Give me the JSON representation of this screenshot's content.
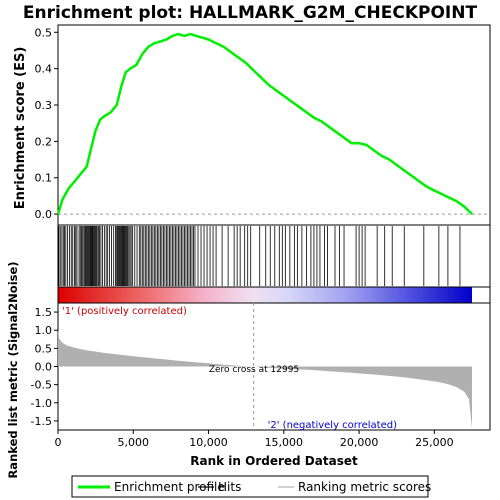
{
  "chart_data": {
    "type": "line",
    "title": "Enrichment plot: HALLMARK_G2M_CHECKPOINT",
    "es_panel": {
      "ylabel": "Enrichment score (ES)",
      "ylim": [
        -0.03,
        0.52
      ],
      "yticks": [
        "0.0",
        "0.1",
        "0.2",
        "0.3",
        "0.4",
        "0.5"
      ],
      "ytick_values": [
        0.0,
        0.1,
        0.2,
        0.3,
        0.4,
        0.5
      ],
      "series_color": "#00ee00",
      "x": [
        0,
        300,
        700,
        1100,
        1500,
        1900,
        2200,
        2500,
        2800,
        3100,
        3500,
        3900,
        4200,
        4500,
        4800,
        5200,
        5600,
        6000,
        6400,
        6800,
        7200,
        7600,
        8000,
        8400,
        8800,
        9200,
        9600,
        10000,
        10500,
        11000,
        11500,
        12000,
        12500,
        13000,
        13500,
        14000,
        14500,
        15000,
        15500,
        16000,
        16500,
        17000,
        17500,
        18000,
        18500,
        19000,
        19500,
        20000,
        20500,
        21000,
        21500,
        22000,
        22500,
        23000,
        23500,
        24000,
        24500,
        25000,
        25500,
        26000,
        26500,
        27000,
        27500
      ],
      "y": [
        0.0,
        0.04,
        0.07,
        0.09,
        0.11,
        0.13,
        0.18,
        0.23,
        0.26,
        0.27,
        0.28,
        0.3,
        0.35,
        0.39,
        0.4,
        0.41,
        0.44,
        0.46,
        0.47,
        0.475,
        0.48,
        0.49,
        0.495,
        0.49,
        0.495,
        0.49,
        0.485,
        0.48,
        0.47,
        0.46,
        0.445,
        0.43,
        0.415,
        0.395,
        0.375,
        0.355,
        0.34,
        0.325,
        0.31,
        0.295,
        0.28,
        0.265,
        0.255,
        0.24,
        0.225,
        0.21,
        0.195,
        0.195,
        0.19,
        0.175,
        0.16,
        0.15,
        0.135,
        0.12,
        0.105,
        0.09,
        0.075,
        0.065,
        0.055,
        0.045,
        0.035,
        0.02,
        0.0
      ]
    },
    "hits": [
      60,
      150,
      260,
      350,
      430,
      520,
      640,
      760,
      880,
      980,
      1100,
      1180,
      1260,
      1400,
      1480,
      1560,
      1640,
      1720,
      1790,
      1850,
      1910,
      1970,
      2030,
      2090,
      2150,
      2200,
      2260,
      2310,
      2370,
      2420,
      2480,
      2540,
      2600,
      2680,
      2760,
      2850,
      2950,
      3080,
      3200,
      3300,
      3420,
      3560,
      3700,
      3820,
      3900,
      3960,
      4020,
      4080,
      4140,
      4200,
      4260,
      4320,
      4380,
      4440,
      4500,
      4560,
      4620,
      4700,
      4780,
      4860,
      4960,
      5100,
      5250,
      5400,
      5500,
      5600,
      5700,
      5800,
      5900,
      6000,
      6100,
      6200,
      6300,
      6400,
      6500,
      6600,
      6700,
      6800,
      6900,
      7000,
      7100,
      7200,
      7300,
      7400,
      7500,
      7600,
      7700,
      7800,
      7900,
      8000,
      8100,
      8200,
      8300,
      8400,
      8500,
      8600,
      8700,
      8800,
      8900,
      9000,
      9100,
      9300,
      9500,
      9700,
      9900,
      10100,
      10300,
      10500,
      10900,
      11300,
      11700,
      11900,
      12100,
      12400,
      12600,
      12800,
      13400,
      13800,
      14100,
      14400,
      14700,
      14900,
      15100,
      15400,
      15700,
      15900,
      16200,
      16500,
      16800,
      17000,
      17200,
      17400,
      17700,
      17900,
      18400,
      18700,
      19000,
      19800,
      20000,
      20200,
      20400,
      21200,
      21700,
      22200,
      23000,
      24300,
      25300,
      25900,
      26700
    ],
    "color_bar": {
      "n_ranks": 27500,
      "zero_cross": 12995
    },
    "ranked_panel": {
      "ylabel": "Ranked list metric (Signal2Noise)",
      "ylim": [
        -1.75,
        1.75
      ],
      "yticks": [
        "-1.5",
        "-1.0",
        "-0.5",
        "0.0",
        "0.5",
        "1.0",
        "1.5"
      ],
      "ytick_values": [
        -1.5,
        -1.0,
        -0.5,
        0.0,
        0.5,
        1.0,
        1.5
      ],
      "x": [
        0,
        100,
        300,
        600,
        1000,
        1500,
        2000,
        3000,
        4000,
        5000,
        6000,
        7000,
        8000,
        9000,
        10000,
        11000,
        12000,
        12995,
        14000,
        15000,
        16000,
        17000,
        18000,
        19000,
        20000,
        21000,
        22000,
        23000,
        24000,
        25000,
        25500,
        26000,
        26500,
        27000,
        27300,
        27500
      ],
      "values": [
        1.0,
        0.75,
        0.65,
        0.58,
        0.53,
        0.48,
        0.44,
        0.38,
        0.33,
        0.28,
        0.24,
        0.2,
        0.16,
        0.12,
        0.09,
        0.05,
        0.02,
        0.0,
        -0.03,
        -0.06,
        -0.08,
        -0.1,
        -0.13,
        -0.16,
        -0.19,
        -0.22,
        -0.26,
        -0.3,
        -0.35,
        -0.41,
        -0.45,
        -0.5,
        -0.57,
        -0.7,
        -0.9,
        -1.7
      ],
      "fill_color": "#b0b0b0",
      "zero_cross_label": "Zero cross at 12995",
      "pos_label": "'1' (positively correlated)",
      "neg_label": "'2' (negatively correlated)",
      "pos_color": "#cc0000",
      "neg_color": "#0000cc"
    },
    "xlabel": "Rank in Ordered Dataset",
    "xlim": [
      0,
      27500
    ],
    "xticks": [
      "0",
      "5,000",
      "10,000",
      "15,000",
      "20,000",
      "25,000"
    ],
    "xtick_values": [
      0,
      5000,
      10000,
      15000,
      20000,
      25000
    ],
    "legend": {
      "placement": "bottom",
      "items": [
        {
          "label": "Enrichment profile",
          "color": "#00ee00",
          "kind": "thick-line"
        },
        {
          "label": "Hits",
          "color": "#000000",
          "kind": "line"
        },
        {
          "label": "Ranking metric scores",
          "color": "#b0b0b0",
          "kind": "line"
        }
      ]
    }
  }
}
